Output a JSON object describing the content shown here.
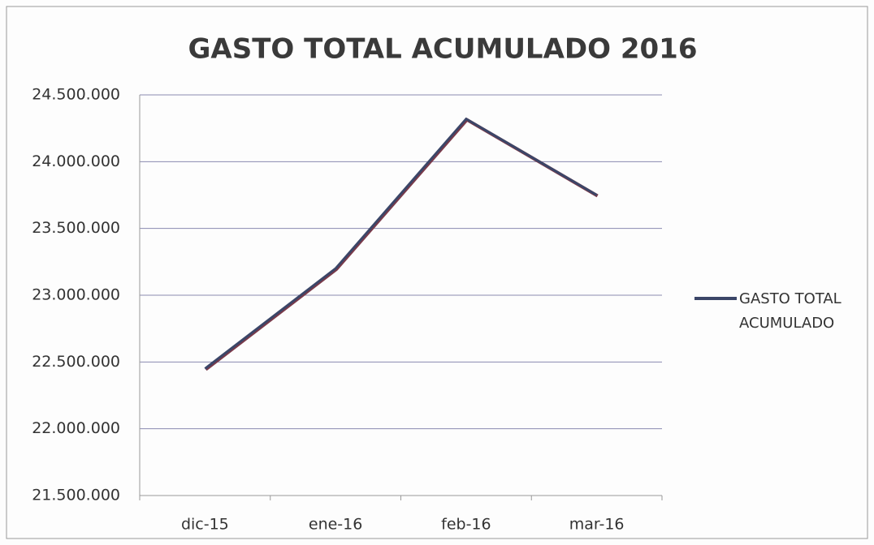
{
  "chart_data": {
    "type": "line",
    "title": "GASTO TOTAL ACUMULADO 2016",
    "categories": [
      "dic-15",
      "ene-16",
      "feb-16",
      "mar-16"
    ],
    "series": [
      {
        "name": "GASTO TOTAL ACUMULADO",
        "color": "#3b4668",
        "values": [
          22450000,
          23200000,
          24320000,
          23750000
        ]
      }
    ],
    "ylim": [
      21500000,
      24500000
    ],
    "yticks": [
      {
        "value": 21500000,
        "label": "21.500.000"
      },
      {
        "value": 22000000,
        "label": "22.000.000"
      },
      {
        "value": 22500000,
        "label": "22.500.000"
      },
      {
        "value": 23000000,
        "label": "23.000.000"
      },
      {
        "value": 23500000,
        "label": "23.500.000"
      },
      {
        "value": 24000000,
        "label": "24.000.000"
      },
      {
        "value": 24500000,
        "label": "24.500.000"
      }
    ],
    "grid": true,
    "legend": "right"
  }
}
